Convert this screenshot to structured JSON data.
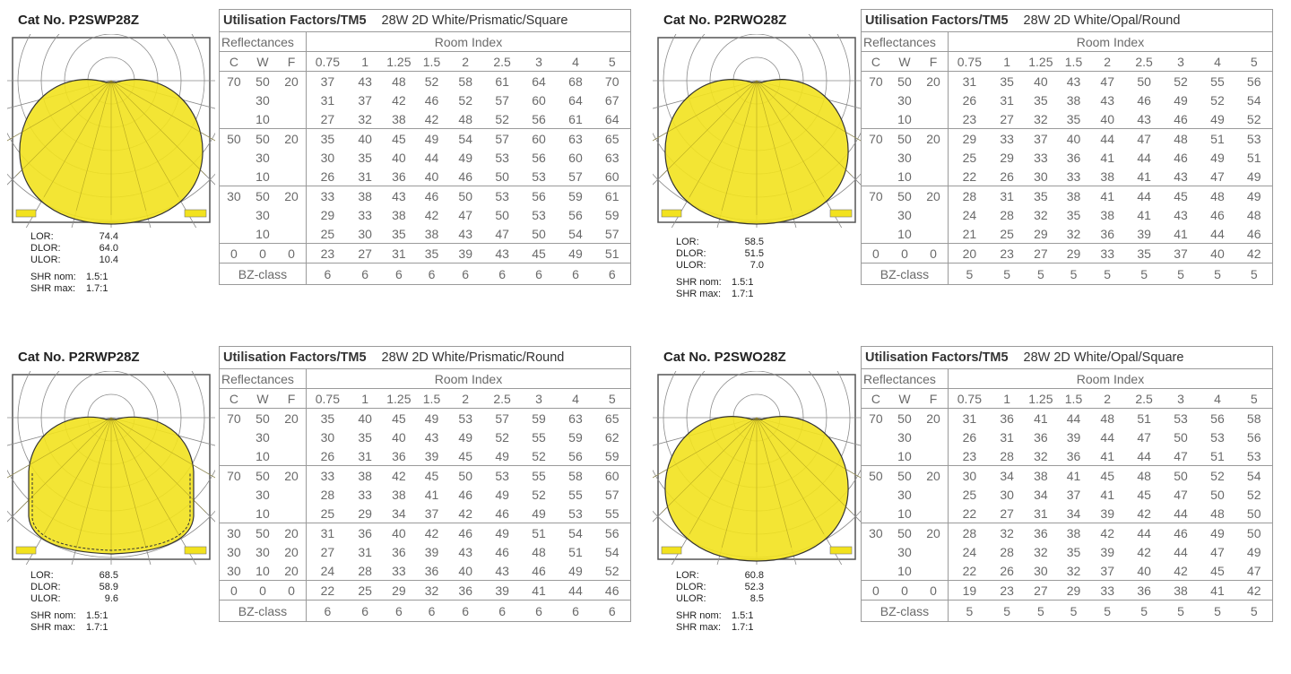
{
  "labels": {
    "uf_title": "Utilisation Factors/TM5",
    "reflectances": "Reflectances",
    "room_index": "Room Index",
    "c": "C",
    "w": "W",
    "f": "F",
    "bz": "BZ-class",
    "lor": "LOR:",
    "dlor": "DLOR:",
    "ulor": "ULOR:",
    "shr_nom": "SHR nom:",
    "shr_max": "SHR max:"
  },
  "room_index_values": [
    "0.75",
    "1",
    "1.25",
    "1.5",
    "2",
    "2.5",
    "3",
    "4",
    "5"
  ],
  "panels": [
    {
      "cat_no": "Cat No. P2SWP28Z",
      "subtitle": "28W 2D White/Prismatic/Square",
      "lor": "74.4",
      "dlor": "64.0",
      "ulor": "10.4",
      "shr_nom": "1.5:1",
      "shr_max": "1.7:1",
      "polar_shape": "circle",
      "rows": [
        {
          "c": "70",
          "w": "50",
          "f": "20",
          "v": [
            "37",
            "43",
            "48",
            "52",
            "58",
            "61",
            "64",
            "68",
            "70"
          ]
        },
        {
          "c": "",
          "w": "30",
          "f": "",
          "v": [
            "31",
            "37",
            "42",
            "46",
            "52",
            "57",
            "60",
            "64",
            "67"
          ]
        },
        {
          "c": "",
          "w": "10",
          "f": "",
          "v": [
            "27",
            "32",
            "38",
            "42",
            "48",
            "52",
            "56",
            "61",
            "64"
          ]
        },
        {
          "c": "50",
          "w": "50",
          "f": "20",
          "v": [
            "35",
            "40",
            "45",
            "49",
            "54",
            "57",
            "60",
            "63",
            "65"
          ]
        },
        {
          "c": "",
          "w": "30",
          "f": "",
          "v": [
            "30",
            "35",
            "40",
            "44",
            "49",
            "53",
            "56",
            "60",
            "63"
          ]
        },
        {
          "c": "",
          "w": "10",
          "f": "",
          "v": [
            "26",
            "31",
            "36",
            "40",
            "46",
            "50",
            "53",
            "57",
            "60"
          ]
        },
        {
          "c": "30",
          "w": "50",
          "f": "20",
          "v": [
            "33",
            "38",
            "43",
            "46",
            "50",
            "53",
            "56",
            "59",
            "61"
          ]
        },
        {
          "c": "",
          "w": "30",
          "f": "",
          "v": [
            "29",
            "33",
            "38",
            "42",
            "47",
            "50",
            "53",
            "56",
            "59"
          ]
        },
        {
          "c": "",
          "w": "10",
          "f": "",
          "v": [
            "25",
            "30",
            "35",
            "38",
            "43",
            "47",
            "50",
            "54",
            "57"
          ]
        },
        {
          "c": "0",
          "w": "0",
          "f": "0",
          "v": [
            "23",
            "27",
            "31",
            "35",
            "39",
            "43",
            "45",
            "49",
            "51"
          ]
        }
      ],
      "bz": [
        "6",
        "6",
        "6",
        "6",
        "6",
        "6",
        "6",
        "6",
        "6"
      ]
    },
    {
      "cat_no": "Cat No. P2RWO28Z",
      "subtitle": "28W 2D White/Opal/Round",
      "lor": "58.5",
      "dlor": "51.5",
      "ulor": "7.0",
      "shr_nom": "1.5:1",
      "shr_max": "1.7:1",
      "polar_shape": "circle",
      "rows": [
        {
          "c": "70",
          "w": "50",
          "f": "20",
          "v": [
            "31",
            "35",
            "40",
            "43",
            "47",
            "50",
            "52",
            "55",
            "56"
          ]
        },
        {
          "c": "",
          "w": "30",
          "f": "",
          "v": [
            "26",
            "31",
            "35",
            "38",
            "43",
            "46",
            "49",
            "52",
            "54"
          ]
        },
        {
          "c": "",
          "w": "10",
          "f": "",
          "v": [
            "23",
            "27",
            "32",
            "35",
            "40",
            "43",
            "46",
            "49",
            "52"
          ]
        },
        {
          "c": "70",
          "w": "50",
          "f": "20",
          "v": [
            "29",
            "33",
            "37",
            "40",
            "44",
            "47",
            "48",
            "51",
            "53"
          ]
        },
        {
          "c": "",
          "w": "30",
          "f": "",
          "v": [
            "25",
            "29",
            "33",
            "36",
            "41",
            "44",
            "46",
            "49",
            "51"
          ]
        },
        {
          "c": "",
          "w": "10",
          "f": "",
          "v": [
            "22",
            "26",
            "30",
            "33",
            "38",
            "41",
            "43",
            "47",
            "49"
          ]
        },
        {
          "c": "70",
          "w": "50",
          "f": "20",
          "v": [
            "28",
            "31",
            "35",
            "38",
            "41",
            "44",
            "45",
            "48",
            "49"
          ]
        },
        {
          "c": "",
          "w": "30",
          "f": "",
          "v": [
            "24",
            "28",
            "32",
            "35",
            "38",
            "41",
            "43",
            "46",
            "48"
          ]
        },
        {
          "c": "",
          "w": "10",
          "f": "",
          "v": [
            "21",
            "25",
            "29",
            "32",
            "36",
            "39",
            "41",
            "44",
            "46"
          ]
        },
        {
          "c": "0",
          "w": "0",
          "f": "0",
          "v": [
            "20",
            "23",
            "27",
            "29",
            "33",
            "35",
            "37",
            "40",
            "42"
          ]
        }
      ],
      "bz": [
        "5",
        "5",
        "5",
        "5",
        "5",
        "5",
        "5",
        "5",
        "5"
      ]
    },
    {
      "cat_no": "Cat No. P2RWP28Z",
      "subtitle": "28W 2D White/Prismatic/Round",
      "lor": "68.5",
      "dlor": "58.9",
      "ulor": "9.6",
      "shr_nom": "1.5:1",
      "shr_max": "1.7:1",
      "polar_shape": "shield",
      "rows": [
        {
          "c": "70",
          "w": "50",
          "f": "20",
          "v": [
            "35",
            "40",
            "45",
            "49",
            "53",
            "57",
            "59",
            "63",
            "65"
          ]
        },
        {
          "c": "",
          "w": "30",
          "f": "",
          "v": [
            "30",
            "35",
            "40",
            "43",
            "49",
            "52",
            "55",
            "59",
            "62"
          ]
        },
        {
          "c": "",
          "w": "10",
          "f": "",
          "v": [
            "26",
            "31",
            "36",
            "39",
            "45",
            "49",
            "52",
            "56",
            "59"
          ]
        },
        {
          "c": "70",
          "w": "50",
          "f": "20",
          "v": [
            "33",
            "38",
            "42",
            "45",
            "50",
            "53",
            "55",
            "58",
            "60"
          ]
        },
        {
          "c": "",
          "w": "30",
          "f": "",
          "v": [
            "28",
            "33",
            "38",
            "41",
            "46",
            "49",
            "52",
            "55",
            "57"
          ]
        },
        {
          "c": "",
          "w": "10",
          "f": "",
          "v": [
            "25",
            "29",
            "34",
            "37",
            "42",
            "46",
            "49",
            "53",
            "55"
          ]
        },
        {
          "c": "30",
          "w": "50",
          "f": "20",
          "v": [
            "31",
            "36",
            "40",
            "42",
            "46",
            "49",
            "51",
            "54",
            "56"
          ]
        },
        {
          "c": "30",
          "w": "30",
          "f": "20",
          "v": [
            "27",
            "31",
            "36",
            "39",
            "43",
            "46",
            "48",
            "51",
            "54"
          ]
        },
        {
          "c": "30",
          "w": "10",
          "f": "20",
          "v": [
            "24",
            "28",
            "33",
            "36",
            "40",
            "43",
            "46",
            "49",
            "52"
          ]
        },
        {
          "c": "0",
          "w": "0",
          "f": "0",
          "v": [
            "22",
            "25",
            "29",
            "32",
            "36",
            "39",
            "41",
            "44",
            "46"
          ]
        }
      ],
      "bz": [
        "6",
        "6",
        "6",
        "6",
        "6",
        "6",
        "6",
        "6",
        "6"
      ]
    },
    {
      "cat_no": "Cat No. P2SWO28Z",
      "subtitle": "28W 2D White/Opal/Square",
      "lor": "60.8",
      "dlor": "52.3",
      "ulor": "8.5",
      "shr_nom": "1.5:1",
      "shr_max": "1.7:1",
      "polar_shape": "circle",
      "rows": [
        {
          "c": "70",
          "w": "50",
          "f": "20",
          "v": [
            "31",
            "36",
            "41",
            "44",
            "48",
            "51",
            "53",
            "56",
            "58"
          ]
        },
        {
          "c": "",
          "w": "30",
          "f": "",
          "v": [
            "26",
            "31",
            "36",
            "39",
            "44",
            "47",
            "50",
            "53",
            "56"
          ]
        },
        {
          "c": "",
          "w": "10",
          "f": "",
          "v": [
            "23",
            "28",
            "32",
            "36",
            "41",
            "44",
            "47",
            "51",
            "53"
          ]
        },
        {
          "c": "50",
          "w": "50",
          "f": "20",
          "v": [
            "30",
            "34",
            "38",
            "41",
            "45",
            "48",
            "50",
            "52",
            "54"
          ]
        },
        {
          "c": "",
          "w": "30",
          "f": "",
          "v": [
            "25",
            "30",
            "34",
            "37",
            "41",
            "45",
            "47",
            "50",
            "52"
          ]
        },
        {
          "c": "",
          "w": "10",
          "f": "",
          "v": [
            "22",
            "27",
            "31",
            "34",
            "39",
            "42",
            "44",
            "48",
            "50"
          ]
        },
        {
          "c": "30",
          "w": "50",
          "f": "20",
          "v": [
            "28",
            "32",
            "36",
            "38",
            "42",
            "44",
            "46",
            "49",
            "50"
          ]
        },
        {
          "c": "",
          "w": "30",
          "f": "",
          "v": [
            "24",
            "28",
            "32",
            "35",
            "39",
            "42",
            "44",
            "47",
            "49"
          ]
        },
        {
          "c": "",
          "w": "10",
          "f": "",
          "v": [
            "22",
            "26",
            "30",
            "32",
            "37",
            "40",
            "42",
            "45",
            "47"
          ]
        },
        {
          "c": "0",
          "w": "0",
          "f": "0",
          "v": [
            "19",
            "23",
            "27",
            "29",
            "33",
            "36",
            "38",
            "41",
            "42"
          ]
        }
      ],
      "bz": [
        "5",
        "5",
        "5",
        "5",
        "5",
        "5",
        "5",
        "5",
        "5"
      ]
    }
  ],
  "colors": {
    "fill": "#f2e21e",
    "grid": "#8a8a8a",
    "border": "#9a9a9a"
  }
}
